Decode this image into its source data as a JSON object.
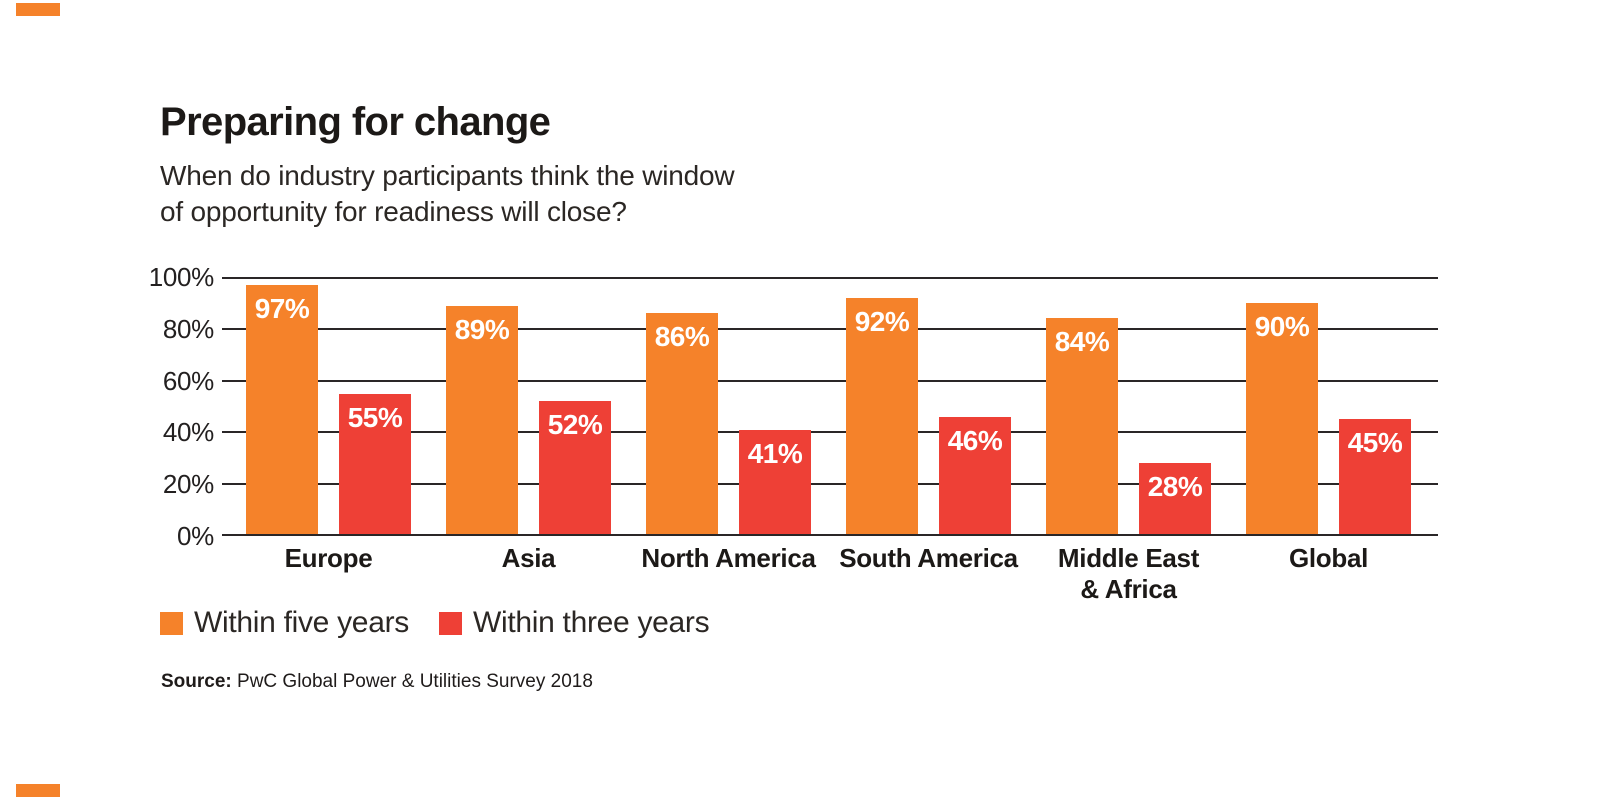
{
  "decor": {
    "corner_mark_color": "#F5822A"
  },
  "header": {
    "title": "Preparing for change",
    "subtitle_line1": "When do industry participants think the window",
    "subtitle_line2": "of opportunity for readiness will close?"
  },
  "chart_data": {
    "type": "bar",
    "title": "Preparing for change",
    "subtitle": "When do industry participants think the window of opportunity for readiness will close?",
    "categories": [
      "Europe",
      "Asia",
      "North America",
      "South America",
      "Middle East & Africa",
      "Global"
    ],
    "categories_display": [
      [
        "Europe"
      ],
      [
        "Asia"
      ],
      [
        "North America"
      ],
      [
        "South America"
      ],
      [
        "Middle East",
        "& Africa"
      ],
      [
        "Global"
      ]
    ],
    "series": [
      {
        "name": "Within five years",
        "color": "#F5822A",
        "values": [
          97,
          89,
          86,
          92,
          84,
          90
        ]
      },
      {
        "name": "Within three years",
        "color": "#EE4036",
        "values": [
          55,
          52,
          41,
          46,
          28,
          45
        ]
      }
    ],
    "value_labels": [
      [
        "97%",
        "89%",
        "86%",
        "92%",
        "84%",
        "90%"
      ],
      [
        "55%",
        "52%",
        "41%",
        "46%",
        "28%",
        "45%"
      ]
    ],
    "y_ticks": [
      "100%",
      "80%",
      "60%",
      "40%",
      "20%",
      "0%"
    ],
    "ylim": [
      0,
      100
    ],
    "grid": "horizontal",
    "gridline_color": "#2A2627",
    "value_label_style": "inside-top-white-bold",
    "legend_position": "bottom-left"
  },
  "legend": {
    "items": [
      {
        "label": "Within five years",
        "color": "#F5822A"
      },
      {
        "label": "Within three years",
        "color": "#EE4036"
      }
    ]
  },
  "source": {
    "prefix": "Source:",
    "text": " PwC Global Power & Utilities Survey 2018"
  }
}
